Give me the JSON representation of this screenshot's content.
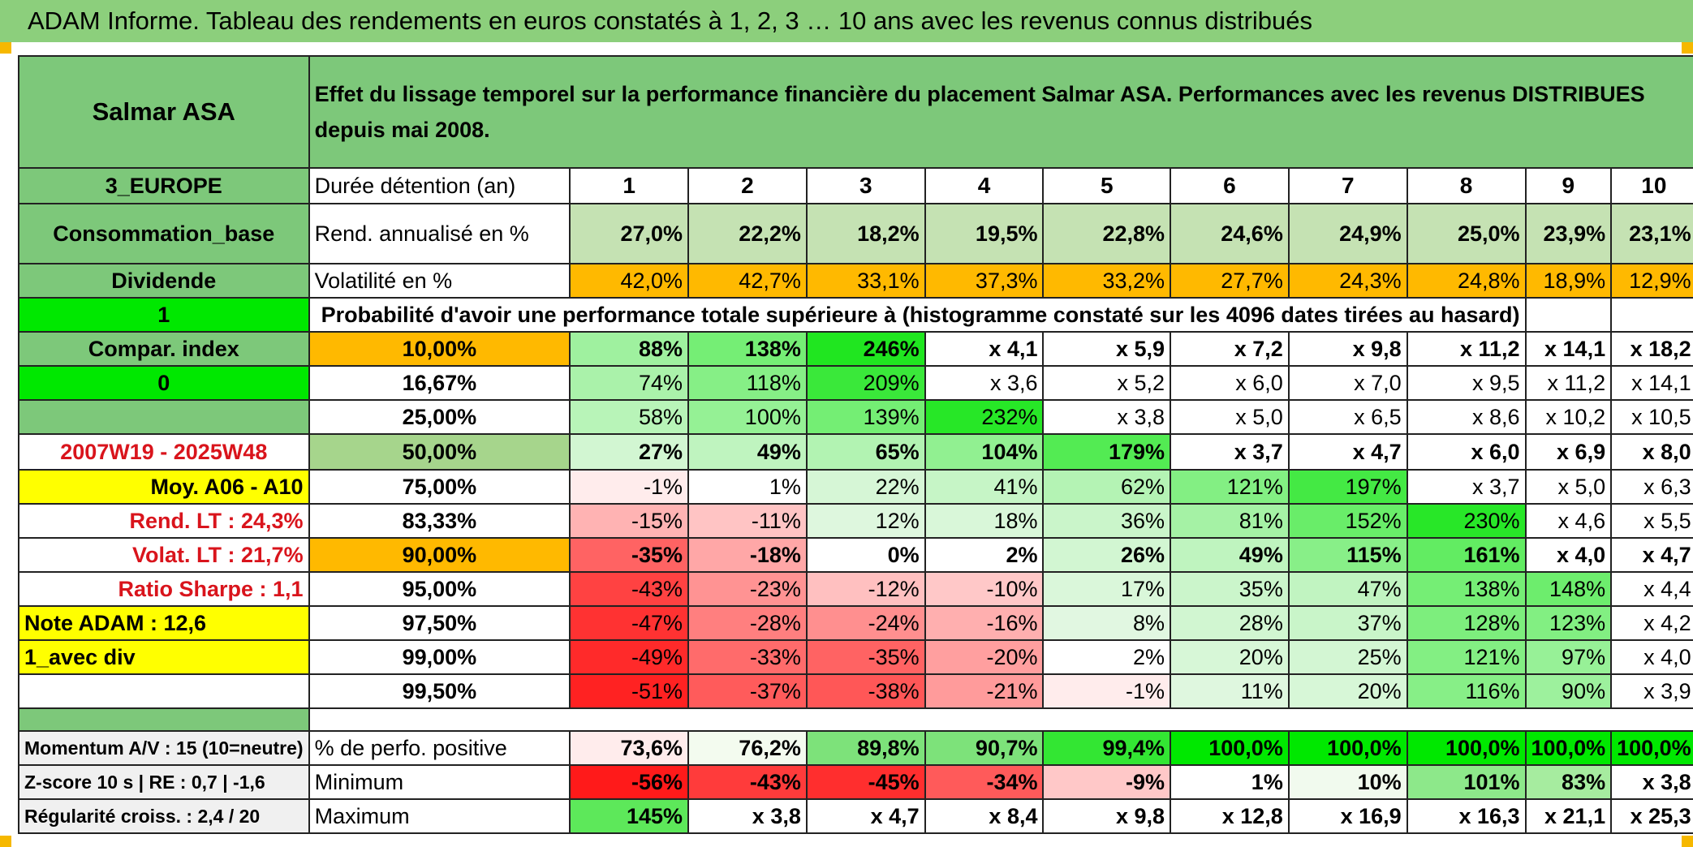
{
  "title": "ADAM Informe. Tableau des rendements en euros constatés à 1, 2, 3 … 10 ans avec les revenus connus distribués",
  "header": {
    "name": "Salmar ASA",
    "description": "Effet du lissage temporel sur la performance financière du placement Salmar ASA. Performances avec les revenus DISTRIBUES depuis mai 2008."
  },
  "side": {
    "region": "3_EUROPE",
    "sector": "Consommation_base",
    "dividend": "Dividende",
    "flag1": "1",
    "compar": "Compar. index",
    "flag0": "0",
    "period": "2007W19 - 2025W48",
    "moy": "Moy. A06 - A10",
    "rend_lt": "Rend. LT :   24,3%",
    "volat_lt": "Volat. LT :   21,7%",
    "sharpe": "Ratio Sharpe :    1,1",
    "note": "Note ADAM : 12,6",
    "avec_div": "1_avec div"
  },
  "bottom_left": {
    "momentum": "Momentum A/V : 15 (10=neutre)",
    "zscore": "Z-score 10 s | RE : 0,7 | -1,6",
    "regularite": "Régularité croiss. : 2,4 / 20"
  },
  "labels": {
    "duree": "Durée détention (an)",
    "rend": "Rend. annualisé en %",
    "vol": "Volatilité en %",
    "proba": "Probabilité d'avoir une performance totale supérieure à (histogramme constaté sur les 4096 dates tirées au hasard)",
    "pos": "% de perfo. positive",
    "min": "Minimum",
    "max": "Maximum"
  },
  "years": [
    "1",
    "2",
    "3",
    "4",
    "5",
    "6",
    "7",
    "8",
    "9",
    "10"
  ],
  "rend": [
    "27,0%",
    "22,2%",
    "18,2%",
    "19,5%",
    "22,8%",
    "24,6%",
    "24,9%",
    "25,0%",
    "23,9%",
    "23,1%"
  ],
  "vol": [
    "42,0%",
    "42,7%",
    "33,1%",
    "37,3%",
    "33,2%",
    "27,7%",
    "24,3%",
    "24,8%",
    "18,9%",
    "12,9%"
  ],
  "prob_rows": [
    {
      "level": "10,00%",
      "values": [
        "88%",
        "138%",
        "246%",
        "x 4,1",
        "x 5,9",
        "x 7,2",
        "x 9,8",
        "x 11,2",
        "x 14,1",
        "x 18,2"
      ]
    },
    {
      "level": "16,67%",
      "values": [
        "74%",
        "118%",
        "209%",
        "x 3,6",
        "x 5,2",
        "x 6,0",
        "x 7,0",
        "x 9,5",
        "x 11,2",
        "x 14,1"
      ]
    },
    {
      "level": "25,00%",
      "values": [
        "58%",
        "100%",
        "139%",
        "232%",
        "x 3,8",
        "x 5,0",
        "x 6,5",
        "x 8,6",
        "x 10,2",
        "x 10,5"
      ]
    },
    {
      "level": "50,00%",
      "values": [
        "27%",
        "49%",
        "65%",
        "104%",
        "179%",
        "x 3,7",
        "x 4,7",
        "x 6,0",
        "x 6,9",
        "x 8,0"
      ]
    },
    {
      "level": "75,00%",
      "values": [
        "-1%",
        "1%",
        "22%",
        "41%",
        "62%",
        "121%",
        "197%",
        "x 3,7",
        "x 5,0",
        "x 6,3"
      ]
    },
    {
      "level": "83,33%",
      "values": [
        "-15%",
        "-11%",
        "12%",
        "18%",
        "36%",
        "81%",
        "152%",
        "230%",
        "x 4,6",
        "x 5,5"
      ]
    },
    {
      "level": "90,00%",
      "values": [
        "-35%",
        "-18%",
        "0%",
        "2%",
        "26%",
        "49%",
        "115%",
        "161%",
        "x 4,0",
        "x 4,7"
      ]
    },
    {
      "level": "95,00%",
      "values": [
        "-43%",
        "-23%",
        "-12%",
        "-10%",
        "17%",
        "35%",
        "47%",
        "138%",
        "148%",
        "x 4,4"
      ]
    },
    {
      "level": "97,50%",
      "values": [
        "-47%",
        "-28%",
        "-24%",
        "-16%",
        "8%",
        "28%",
        "37%",
        "128%",
        "123%",
        "x 4,2"
      ]
    },
    {
      "level": "99,00%",
      "values": [
        "-49%",
        "-33%",
        "-35%",
        "-20%",
        "2%",
        "20%",
        "25%",
        "121%",
        "97%",
        "x 4,0"
      ]
    },
    {
      "level": "99,50%",
      "values": [
        "-51%",
        "-37%",
        "-38%",
        "-21%",
        "-1%",
        "11%",
        "20%",
        "116%",
        "90%",
        "x 3,9"
      ]
    }
  ],
  "pos": [
    "73,6%",
    "76,2%",
    "89,8%",
    "90,7%",
    "99,4%",
    "100,0%",
    "100,0%",
    "100,0%",
    "100,0%",
    "100,0%"
  ],
  "min": [
    "-56%",
    "-43%",
    "-45%",
    "-34%",
    "-9%",
    "1%",
    "10%",
    "101%",
    "83%",
    "x 3,8"
  ],
  "max": [
    "145%",
    "x 3,8",
    "x 4,7",
    "x 8,4",
    "x 9,8",
    "x 12,8",
    "x 16,9",
    "x 16,3",
    "x 21,1",
    "x 25,3"
  ],
  "colors": {
    "header_green": "#7dc87a",
    "title_green": "#8ccf7c",
    "light_green": "#c5e2b3",
    "bright_green": "#00e800",
    "orange": "#ffb900",
    "yellow": "#ffff00",
    "red": "#d9141c"
  }
}
